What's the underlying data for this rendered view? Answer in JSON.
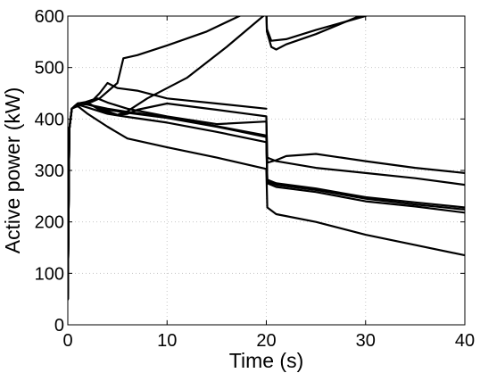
{
  "chart_data": {
    "type": "line",
    "title": "",
    "xlabel": "Time (s)",
    "ylabel": "Active power (kW)",
    "xlim": [
      0,
      40
    ],
    "ylim": [
      0,
      600
    ],
    "xticks": [
      0,
      10,
      20,
      30,
      40
    ],
    "yticks": [
      0,
      100,
      200,
      300,
      400,
      500,
      600
    ],
    "grid": true,
    "legend": "none",
    "series": [
      {
        "points": [
          [
            0,
            50
          ],
          [
            0.15,
            380
          ],
          [
            0.4,
            420
          ],
          [
            1,
            430
          ],
          [
            1.8,
            433
          ],
          [
            2.6,
            438
          ],
          [
            3.2,
            450
          ],
          [
            4,
            470
          ],
          [
            5,
            460
          ],
          [
            7,
            455
          ],
          [
            10,
            440
          ],
          [
            15,
            430
          ],
          [
            20,
            420
          ]
        ]
      },
      {
        "points": [
          [
            0,
            60
          ],
          [
            0.15,
            380
          ],
          [
            0.4,
            420
          ],
          [
            1,
            428
          ],
          [
            1.8,
            432
          ],
          [
            2.4,
            433
          ],
          [
            3.2,
            440
          ],
          [
            5,
            470
          ],
          [
            5.6,
            518
          ],
          [
            7,
            524
          ],
          [
            10,
            543
          ],
          [
            14,
            570
          ],
          [
            20,
            625
          ],
          [
            20.05,
            570
          ],
          [
            20.5,
            540
          ],
          [
            21,
            535
          ],
          [
            22,
            545
          ],
          [
            25,
            565
          ],
          [
            30,
            605
          ]
        ]
      },
      {
        "points": [
          [
            0,
            50
          ],
          [
            0.15,
            380
          ],
          [
            0.4,
            420
          ],
          [
            1,
            430
          ],
          [
            2,
            432
          ],
          [
            3,
            420
          ],
          [
            4,
            412
          ],
          [
            5,
            408
          ],
          [
            6,
            415
          ],
          [
            8,
            440
          ],
          [
            12,
            480
          ],
          [
            16,
            540
          ],
          [
            20,
            605
          ],
          [
            20.05,
            575
          ],
          [
            20.5,
            552
          ],
          [
            22,
            555
          ],
          [
            25,
            573
          ],
          [
            30,
            600
          ]
        ]
      },
      {
        "points": [
          [
            0,
            50
          ],
          [
            0.15,
            380
          ],
          [
            0.4,
            420
          ],
          [
            1,
            430
          ],
          [
            2,
            430
          ],
          [
            3,
            422
          ],
          [
            4,
            415
          ],
          [
            5,
            408
          ],
          [
            6,
            410
          ],
          [
            7,
            418
          ],
          [
            10,
            430
          ],
          [
            15,
            418
          ],
          [
            20,
            405
          ],
          [
            20.1,
            315
          ],
          [
            21,
            320
          ],
          [
            22,
            328
          ],
          [
            25,
            332
          ],
          [
            30,
            318
          ],
          [
            35,
            305
          ],
          [
            40,
            295
          ]
        ]
      },
      {
        "points": [
          [
            0,
            50
          ],
          [
            0.15,
            380
          ],
          [
            0.4,
            420
          ],
          [
            1,
            430
          ],
          [
            2,
            432
          ],
          [
            3,
            440
          ],
          [
            4,
            432
          ],
          [
            6,
            420
          ],
          [
            10,
            405
          ],
          [
            15,
            390
          ],
          [
            20,
            395
          ],
          [
            20.1,
            325
          ],
          [
            21,
            318
          ],
          [
            25,
            305
          ],
          [
            30,
            295
          ],
          [
            35,
            285
          ],
          [
            40,
            272
          ]
        ]
      },
      {
        "points": [
          [
            0,
            50
          ],
          [
            0.15,
            380
          ],
          [
            0.4,
            420
          ],
          [
            1,
            430
          ],
          [
            2,
            428
          ],
          [
            4,
            418
          ],
          [
            6,
            412
          ],
          [
            10,
            402
          ],
          [
            15,
            385
          ],
          [
            20,
            365
          ],
          [
            20.1,
            282
          ],
          [
            21,
            275
          ],
          [
            25,
            265
          ],
          [
            30,
            248
          ],
          [
            35,
            238
          ],
          [
            40,
            228
          ]
        ]
      },
      {
        "points": [
          [
            0,
            50
          ],
          [
            0.15,
            380
          ],
          [
            0.4,
            420
          ],
          [
            1,
            430
          ],
          [
            2,
            428
          ],
          [
            4,
            420
          ],
          [
            6,
            414
          ],
          [
            10,
            404
          ],
          [
            15,
            386
          ],
          [
            20,
            368
          ],
          [
            20.1,
            278
          ],
          [
            21,
            272
          ],
          [
            25,
            262
          ],
          [
            30,
            245
          ],
          [
            35,
            234
          ],
          [
            40,
            224
          ]
        ]
      },
      {
        "points": [
          [
            0,
            50
          ],
          [
            0.15,
            380
          ],
          [
            0.4,
            420
          ],
          [
            1,
            428
          ],
          [
            2,
            422
          ],
          [
            4,
            410
          ],
          [
            6,
            404
          ],
          [
            10,
            393
          ],
          [
            15,
            375
          ],
          [
            20,
            355
          ],
          [
            20.1,
            275
          ],
          [
            21,
            268
          ],
          [
            25,
            258
          ],
          [
            30,
            240
          ],
          [
            35,
            230
          ],
          [
            40,
            218
          ]
        ]
      },
      {
        "points": [
          [
            0,
            50
          ],
          [
            0.15,
            380
          ],
          [
            0.4,
            420
          ],
          [
            1,
            425
          ],
          [
            2,
            410
          ],
          [
            4,
            385
          ],
          [
            6,
            362
          ],
          [
            10,
            345
          ],
          [
            15,
            325
          ],
          [
            20,
            303
          ],
          [
            20.1,
            228
          ],
          [
            21,
            215
          ],
          [
            25,
            200
          ],
          [
            30,
            175
          ],
          [
            35,
            155
          ],
          [
            40,
            135
          ]
        ]
      }
    ]
  }
}
